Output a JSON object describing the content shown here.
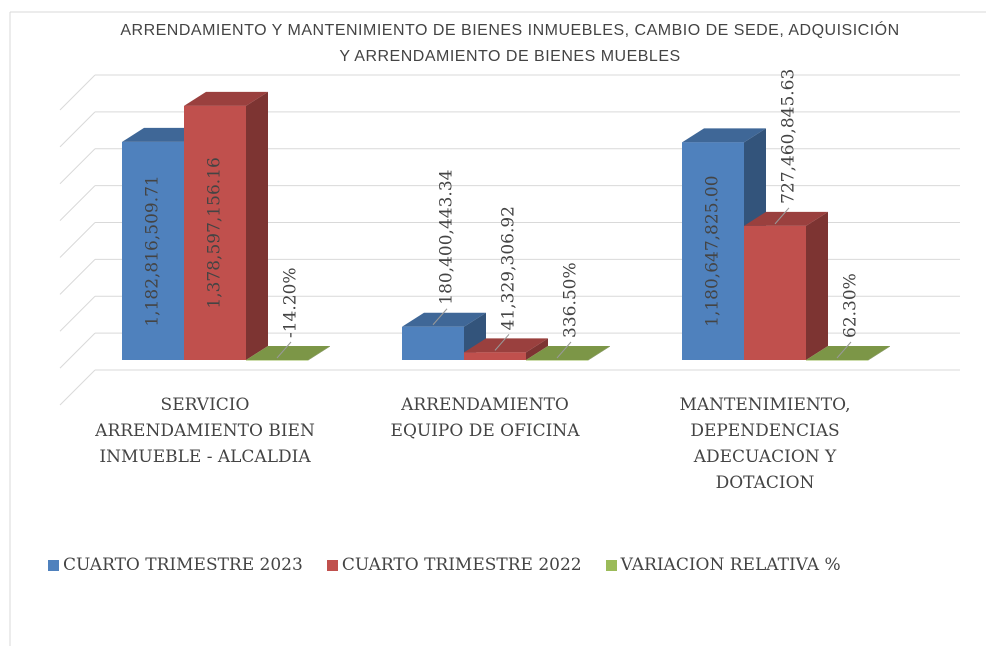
{
  "chart_data": {
    "type": "bar3d",
    "title": "ARRENDAMIENTO Y MANTENIMIENTO DE BIENES INMUEBLES, CAMBIO DE SEDE, ADQUISICIÓN Y ARRENDAMIENTO DE BIENES MUEBLES",
    "categories": [
      "SERVICIO ARRENDAMIENTO BIEN INMUEBLE - ALCALDIA",
      "ARRENDAMIENTO EQUIPO DE OFICINA",
      "MANTENIMIENTO, DEPENDENCIAS ADECUACION Y DOTACION"
    ],
    "series": [
      {
        "name": "CUARTO TRIMESTRE 2023",
        "color": "#4f81bd",
        "values": [
          1182816509.71,
          180400443.34,
          1180647825.0
        ],
        "value_labels": [
          "1,182,816,509.71",
          "180,400,443.34",
          "1,180,647,825.00"
        ]
      },
      {
        "name": "CUARTO TRIMESTRE 2022",
        "color": "#c0504d",
        "values": [
          1378597156.16,
          41329306.92,
          727460845.63
        ],
        "value_labels": [
          "1,378,597,156.16",
          "41,329,306.92",
          "727,460,845.63"
        ]
      },
      {
        "name": "VARIACION RELATIVA %",
        "color": "#9bbb59",
        "values": [
          -14.2,
          336.5,
          62.3
        ],
        "value_labels": [
          "-14.20%",
          "336.50%",
          "62.30%"
        ]
      }
    ],
    "ylim": [
      0,
      1600000000
    ],
    "yticks": [
      0,
      200000000,
      400000000,
      600000000,
      800000000,
      1000000000,
      1200000000,
      1400000000,
      1600000000
    ],
    "grid": true
  }
}
